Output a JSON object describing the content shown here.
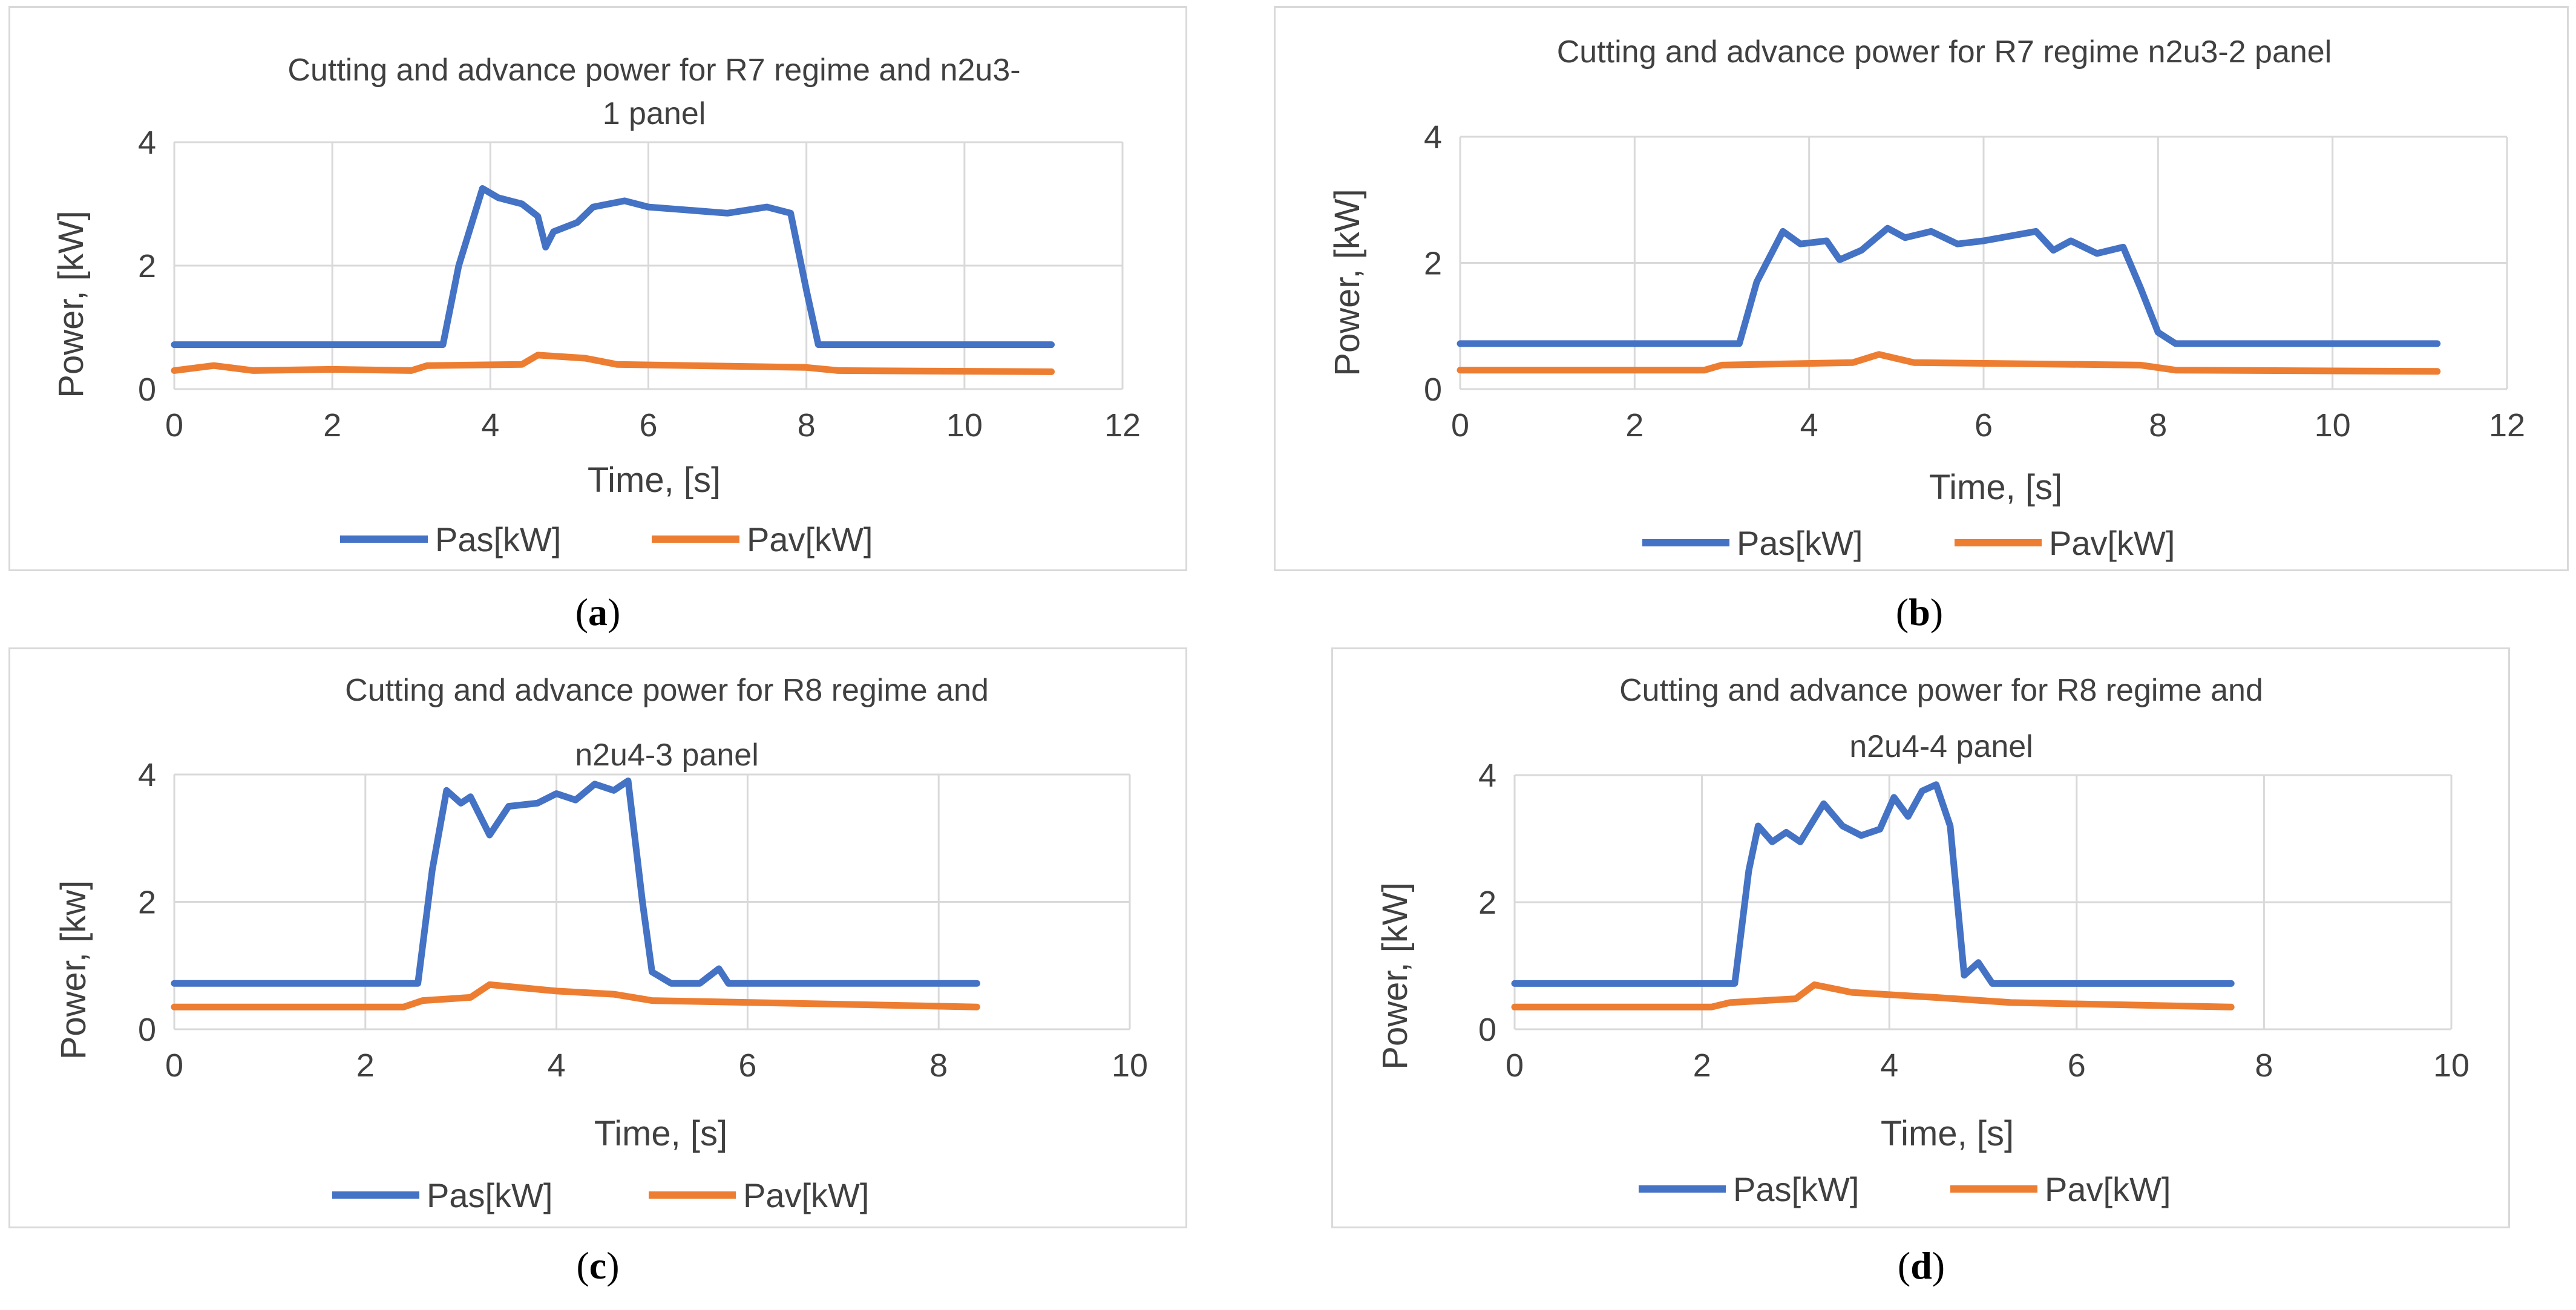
{
  "colors": {
    "pas": "#4472C4",
    "pav": "#ED7D31",
    "grid": "#d9d9d9",
    "text": "#404040"
  },
  "chart_data": [
    {
      "type": "line",
      "label": "a",
      "title_lines": [
        "Cutting and advance power for R7 regime and n2u3-",
        "1 panel"
      ],
      "xlabel": "Time, [s]",
      "ylabel": "Power, [kW]",
      "xlim": [
        0,
        12
      ],
      "ylim": [
        0,
        4
      ],
      "xticks": [
        0,
        2,
        4,
        6,
        8,
        10,
        12
      ],
      "yticks": [
        0,
        2,
        4
      ],
      "legend": [
        "Pas[kW]",
        "Pav[kW]"
      ],
      "series": [
        {
          "name": "Pas[kW]",
          "x": [
            0,
            3.4,
            3.6,
            3.9,
            4.1,
            4.4,
            4.6,
            4.7,
            4.8,
            5.1,
            5.3,
            5.7,
            6.0,
            6.5,
            7.0,
            7.5,
            7.8,
            8.0,
            8.15,
            11.1
          ],
          "y": [
            0.72,
            0.72,
            2.0,
            3.25,
            3.1,
            3.0,
            2.8,
            2.3,
            2.55,
            2.7,
            2.95,
            3.05,
            2.95,
            2.9,
            2.85,
            2.95,
            2.85,
            1.6,
            0.72,
            0.72
          ]
        },
        {
          "name": "Pav[kW]",
          "x": [
            0,
            0.5,
            1.0,
            2.0,
            3.0,
            3.2,
            4.4,
            4.6,
            5.2,
            5.6,
            8.0,
            8.4,
            11.1
          ],
          "y": [
            0.3,
            0.38,
            0.3,
            0.32,
            0.3,
            0.38,
            0.4,
            0.55,
            0.5,
            0.4,
            0.35,
            0.3,
            0.28
          ]
        }
      ]
    },
    {
      "type": "line",
      "label": "b",
      "title_lines": [
        "Cutting and advance power for R7 regime n2u3-2 panel"
      ],
      "xlabel": "Time, [s]",
      "ylabel": "Power, [kW]",
      "xlim": [
        0,
        12
      ],
      "ylim": [
        0,
        4
      ],
      "xticks": [
        0,
        2,
        4,
        6,
        8,
        10,
        12
      ],
      "yticks": [
        0,
        2,
        4
      ],
      "legend": [
        "Pas[kW]",
        "Pav[kW]"
      ],
      "series": [
        {
          "name": "Pas[kW]",
          "x": [
            0,
            3.2,
            3.4,
            3.7,
            3.9,
            4.2,
            4.35,
            4.6,
            4.9,
            5.1,
            5.4,
            5.7,
            6.0,
            6.6,
            6.8,
            7.0,
            7.3,
            7.6,
            7.8,
            8.0,
            8.2,
            11.2
          ],
          "y": [
            0.72,
            0.72,
            1.7,
            2.5,
            2.3,
            2.35,
            2.05,
            2.2,
            2.55,
            2.4,
            2.5,
            2.3,
            2.35,
            2.5,
            2.2,
            2.35,
            2.15,
            2.25,
            1.6,
            0.9,
            0.72,
            0.72
          ]
        },
        {
          "name": "Pav[kW]",
          "x": [
            0,
            2.8,
            3.0,
            4.5,
            4.8,
            5.2,
            7.8,
            8.2,
            11.2
          ],
          "y": [
            0.3,
            0.3,
            0.38,
            0.42,
            0.55,
            0.42,
            0.38,
            0.3,
            0.28
          ]
        }
      ]
    },
    {
      "type": "line",
      "label": "c",
      "title_lines": [
        "Cutting and advance power for R8 regime and",
        "n2u4-3 panel"
      ],
      "xlabel": "Time, [s]",
      "ylabel": "Power, [kw]",
      "xlim": [
        0,
        10
      ],
      "ylim": [
        0,
        4
      ],
      "xticks": [
        0,
        2,
        4,
        6,
        8,
        10
      ],
      "yticks": [
        0,
        2,
        4
      ],
      "legend": [
        "Pas[kW]",
        "Pav[kW]"
      ],
      "series": [
        {
          "name": "Pas[kW]",
          "x": [
            0,
            2.55,
            2.7,
            2.85,
            3.0,
            3.1,
            3.3,
            3.5,
            3.8,
            4.0,
            4.2,
            4.4,
            4.6,
            4.75,
            4.9,
            5.0,
            5.2,
            5.5,
            5.7,
            5.8,
            8.4
          ],
          "y": [
            0.72,
            0.72,
            2.5,
            3.75,
            3.55,
            3.65,
            3.05,
            3.5,
            3.55,
            3.7,
            3.6,
            3.85,
            3.75,
            3.9,
            2.0,
            0.9,
            0.72,
            0.72,
            0.95,
            0.72,
            0.72
          ]
        },
        {
          "name": "Pav[kW]",
          "x": [
            0,
            2.4,
            2.6,
            3.1,
            3.3,
            4.0,
            4.6,
            5.0,
            8.4
          ],
          "y": [
            0.35,
            0.35,
            0.45,
            0.5,
            0.7,
            0.6,
            0.55,
            0.45,
            0.35
          ]
        }
      ]
    },
    {
      "type": "line",
      "label": "d",
      "title_lines": [
        "Cutting and advance power for R8 regime and",
        "n2u4-4 panel"
      ],
      "xlabel": "Time, [s]",
      "ylabel": "Power, [kW]",
      "xlim": [
        0,
        10
      ],
      "ylim": [
        0,
        4
      ],
      "xticks": [
        0,
        2,
        4,
        6,
        8,
        10
      ],
      "yticks": [
        0,
        2,
        4
      ],
      "legend": [
        "Pas[kW]",
        "Pav[kW]"
      ],
      "series": [
        {
          "name": "Pas[kW]",
          "x": [
            0,
            2.35,
            2.5,
            2.6,
            2.75,
            2.9,
            3.05,
            3.3,
            3.5,
            3.7,
            3.9,
            4.05,
            4.2,
            4.35,
            4.5,
            4.65,
            4.8,
            4.95,
            5.1,
            5.3,
            7.65
          ],
          "y": [
            0.72,
            0.72,
            2.5,
            3.2,
            2.95,
            3.1,
            2.95,
            3.55,
            3.2,
            3.05,
            3.15,
            3.65,
            3.35,
            3.75,
            3.85,
            3.2,
            0.85,
            1.05,
            0.72,
            0.72,
            0.72
          ]
        },
        {
          "name": "Pav[kW]",
          "x": [
            0,
            2.1,
            2.3,
            3.0,
            3.2,
            3.6,
            4.5,
            5.3,
            7.65
          ],
          "y": [
            0.35,
            0.35,
            0.42,
            0.48,
            0.7,
            0.58,
            0.5,
            0.42,
            0.35
          ]
        }
      ]
    }
  ]
}
